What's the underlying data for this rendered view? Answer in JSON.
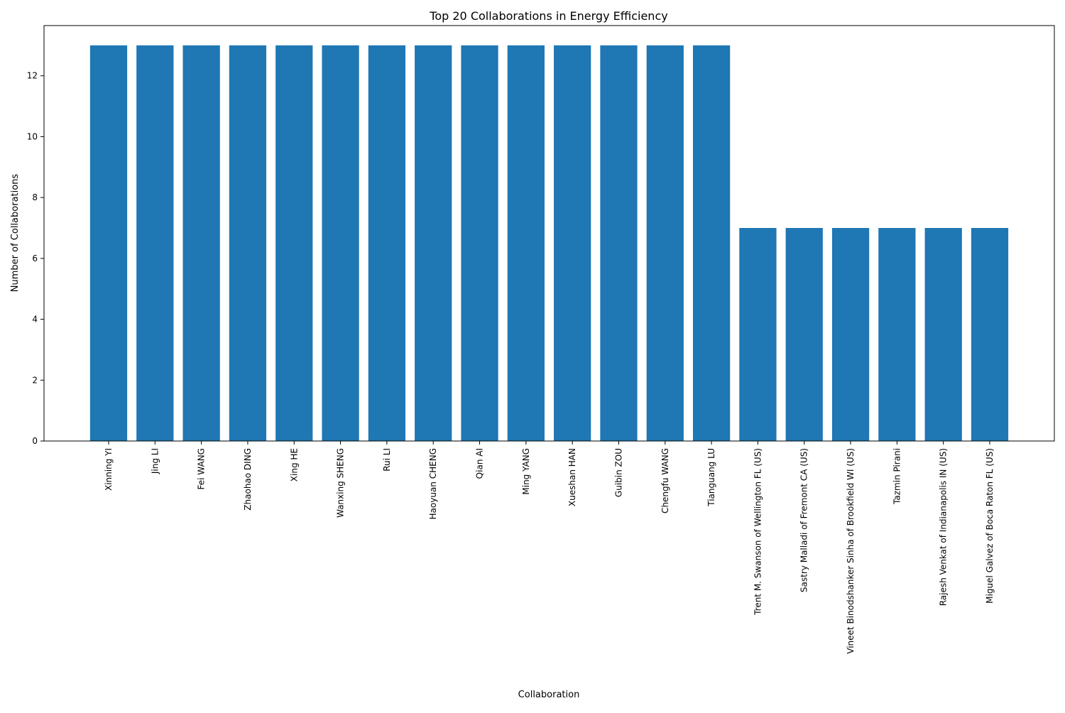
{
  "chart_data": {
    "type": "bar",
    "title": "Top 20 Collaborations in Energy Efficiency",
    "xlabel": "Collaboration",
    "ylabel": "Number of Collaborations",
    "categories": [
      "Xinning YI",
      "Jing LI",
      "Fei WANG",
      "Zhaohao DING",
      "Xing HE",
      "Wanxing SHENG",
      "Rui LI",
      "Haoyuan CHENG",
      "Qian AI",
      "Ming YANG",
      "Xueshan HAN",
      "Guibin ZOU",
      "Chengfu WANG",
      "Tianguang LU",
      "Trent M. Swanson of Wellington FL (US)",
      "Sastry Malladi of Fremont CA (US)",
      "Vineet Binodshanker Sinha of Brookfield WI (US)",
      "Tazmin Pirani",
      "Rajesh Venkat of Indianapolis IN (US)",
      "Miguel Galvez of Boca Raton FL (US)"
    ],
    "values": [
      13,
      13,
      13,
      13,
      13,
      13,
      13,
      13,
      13,
      13,
      13,
      13,
      13,
      13,
      7,
      7,
      7,
      7,
      7,
      7
    ],
    "ylim": [
      0,
      13.65
    ],
    "yticks": [
      0,
      2,
      4,
      6,
      8,
      10,
      12
    ],
    "grid": false,
    "legend": "none",
    "colors": {
      "bar": "#1f77b4",
      "axis": "#000000",
      "background": "#ffffff"
    }
  }
}
